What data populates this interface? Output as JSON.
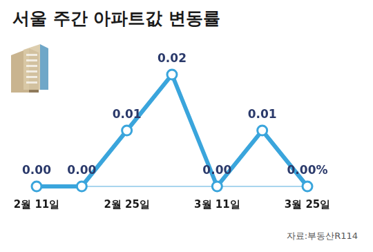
{
  "chart_data": {
    "type": "line",
    "title": "서울 주간 아파트값 변동률",
    "annotations": [
      "자료:부동산R114"
    ],
    "categories": [
      "2월 11일",
      null,
      "2월 25일",
      null,
      "3월 11일",
      null,
      "3월 25일"
    ],
    "values": [
      0.0,
      0.0,
      0.01,
      0.02,
      0.0,
      0.01,
      0.0
    ],
    "value_labels": [
      "0.00",
      "0.00",
      "0.01",
      "0.02",
      "0.00",
      "0.01",
      "0.00%"
    ],
    "color": "#3aa5dc",
    "marker": "circle",
    "ylim": [
      0,
      0.02
    ],
    "yticks": [
      0,
      0.01,
      0.02
    ],
    "grid": false,
    "data_labels": true,
    "tick_labels": "x"
  }
}
